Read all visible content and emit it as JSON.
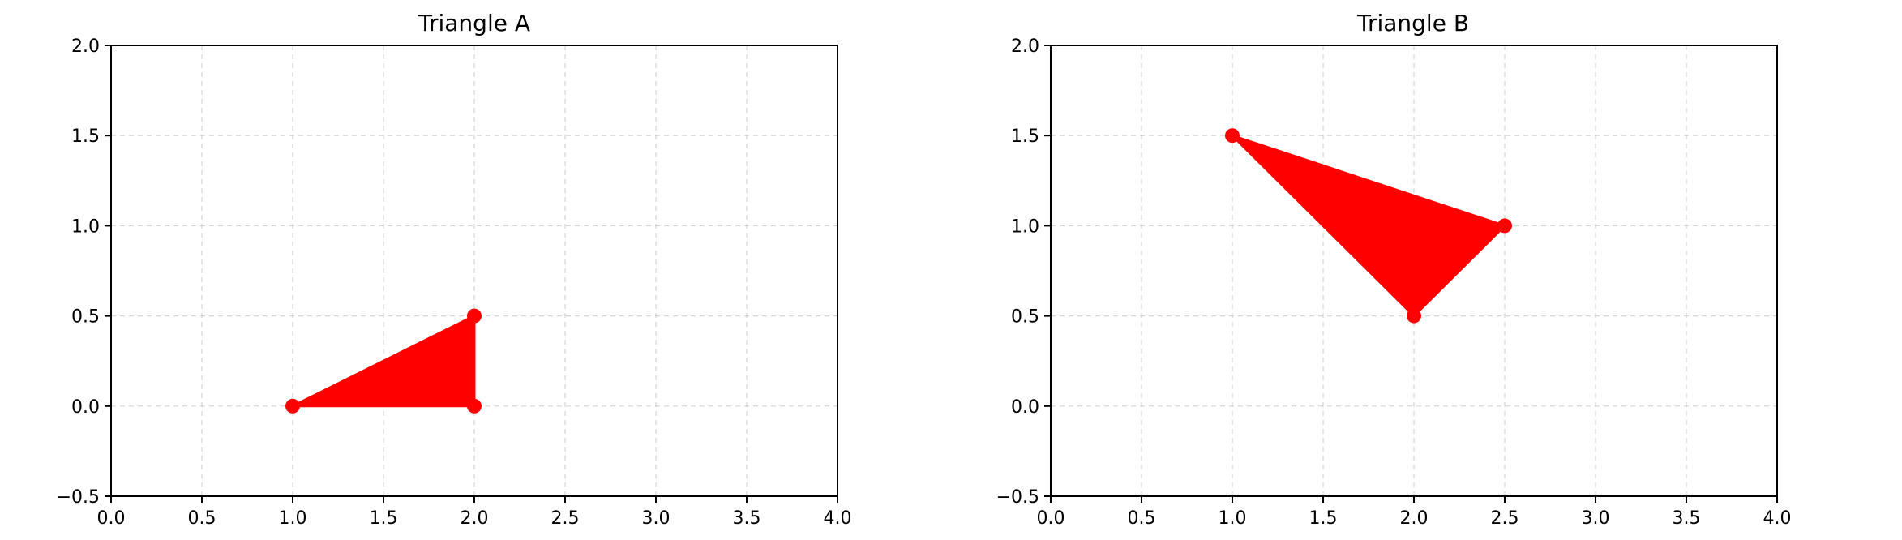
{
  "chart_data": [
    {
      "type": "area",
      "title": "Triangle A",
      "xlabel": "",
      "ylabel": "",
      "xlim": [
        0.0,
        4.0
      ],
      "ylim": [
        -0.5,
        2.0
      ],
      "xticks": [
        "0.0",
        "0.5",
        "1.0",
        "1.5",
        "2.0",
        "2.5",
        "3.0",
        "3.5",
        "4.0"
      ],
      "yticks": [
        "−0.5",
        "0.0",
        "0.5",
        "1.0",
        "1.5",
        "2.0"
      ],
      "grid": true,
      "color": "#ff0000",
      "vertices": [
        {
          "x": 1.0,
          "y": 0.0
        },
        {
          "x": 2.0,
          "y": 0.0
        },
        {
          "x": 2.0,
          "y": 0.5
        }
      ]
    },
    {
      "type": "area",
      "title": "Triangle B",
      "xlabel": "",
      "ylabel": "",
      "xlim": [
        0.0,
        4.0
      ],
      "ylim": [
        -0.5,
        2.0
      ],
      "xticks": [
        "0.0",
        "0.5",
        "1.0",
        "1.5",
        "2.0",
        "2.5",
        "3.0",
        "3.5",
        "4.0"
      ],
      "yticks": [
        "−0.5",
        "0.0",
        "0.5",
        "1.0",
        "1.5",
        "2.0"
      ],
      "grid": true,
      "color": "#ff0000",
      "vertices": [
        {
          "x": 1.0,
          "y": 1.5
        },
        {
          "x": 2.5,
          "y": 1.0
        },
        {
          "x": 2.0,
          "y": 0.5
        }
      ]
    }
  ]
}
